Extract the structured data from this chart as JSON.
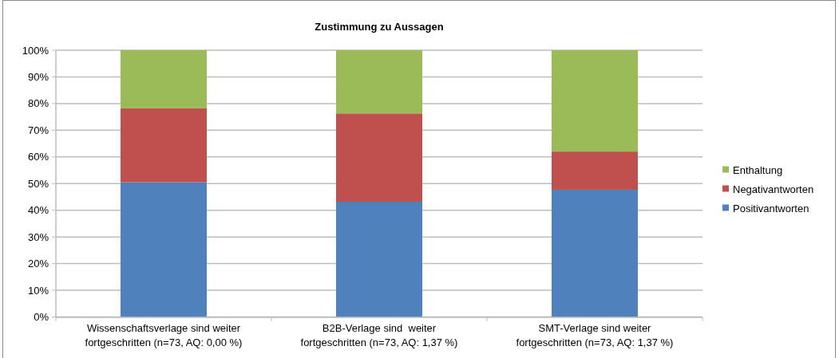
{
  "chart_data": {
    "type": "bar",
    "title": "Zustimmung zu Aussagen",
    "stacked": true,
    "categories": [
      "Wissenschaftsverlage sind weiter fortgeschritten (n=73, AQ: 0,00 %)",
      "B2B-Verlage sind  weiter fortgeschritten (n=73, AQ: 1,37 %)",
      "SMT-Verlage sind weiter fortgeschritten (n=73, AQ: 1,37 %)"
    ],
    "series": [
      {
        "name": "Positivantworten",
        "color": "#4f81bd",
        "values": [
          50.5,
          43.2,
          47.7
        ]
      },
      {
        "name": "Negativantworten",
        "color": "#c0504d",
        "values": [
          27.7,
          33.1,
          14.3
        ]
      },
      {
        "name": "Enthaltung",
        "color": "#9bbb59",
        "values": [
          21.8,
          23.7,
          38.0
        ]
      }
    ],
    "ylim": [
      0,
      100
    ],
    "yticks": [
      {
        "value": 0,
        "label": "0%"
      },
      {
        "value": 10,
        "label": "10%"
      },
      {
        "value": 20,
        "label": "20%"
      },
      {
        "value": 30,
        "label": "30%"
      },
      {
        "value": 40,
        "label": "40%"
      },
      {
        "value": 50,
        "label": "50%"
      },
      {
        "value": 60,
        "label": "60%"
      },
      {
        "value": 70,
        "label": "70%"
      },
      {
        "value": 80,
        "label": "80%"
      },
      {
        "value": 90,
        "label": "90%"
      },
      {
        "value": 100,
        "label": "100%"
      }
    ],
    "grid": "y",
    "legend": "right"
  }
}
